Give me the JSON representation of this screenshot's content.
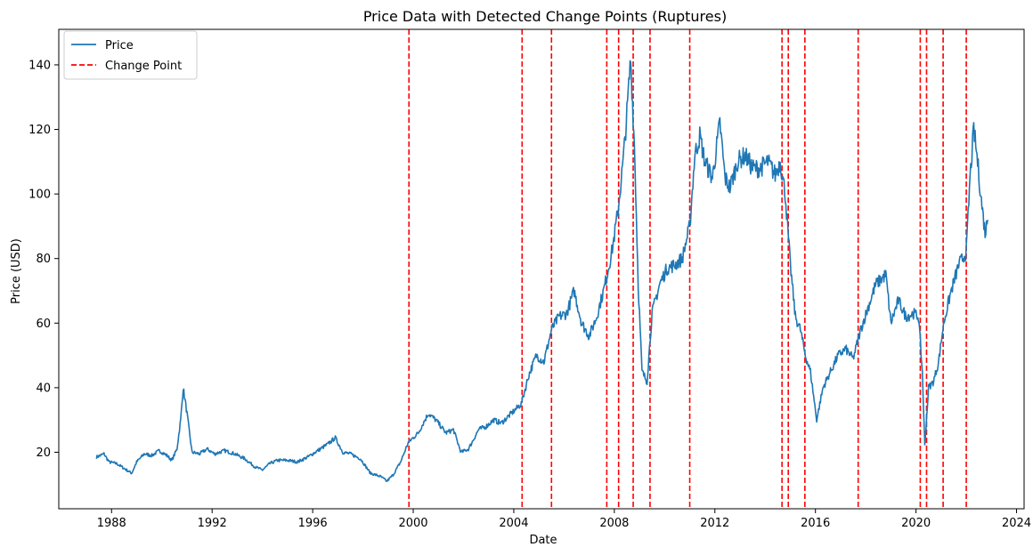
{
  "chart_data": {
    "type": "line",
    "title": "Price Data with Detected Change Points (Ruptures)",
    "xlabel": "Date",
    "ylabel": "Price (USD)",
    "xlim": [
      1985.9,
      2024.3
    ],
    "ylim": [
      2.5,
      151
    ],
    "x_ticks": [
      1988,
      1992,
      1996,
      2000,
      2004,
      2008,
      2012,
      2016,
      2020,
      2024
    ],
    "y_ticks": [
      20,
      40,
      60,
      80,
      100,
      120,
      140
    ],
    "legend": {
      "position": "top-left",
      "entries": [
        "Price",
        "Change Point"
      ]
    },
    "colors": {
      "price": "#1f77b4",
      "change_point": "#ff0000"
    },
    "series": [
      {
        "name": "Price",
        "x": [
          1987.4,
          1987.7,
          1987.9,
          1988.2,
          1988.5,
          1988.8,
          1989.0,
          1989.3,
          1989.6,
          1989.9,
          1990.2,
          1990.4,
          1990.6,
          1990.75,
          1990.85,
          1991.0,
          1991.2,
          1991.5,
          1991.8,
          1992.1,
          1992.5,
          1992.9,
          1993.3,
          1993.7,
          1994.0,
          1994.3,
          1994.6,
          1995.0,
          1995.4,
          1995.8,
          1996.2,
          1996.6,
          1996.9,
          1997.2,
          1997.5,
          1997.9,
          1998.3,
          1998.7,
          1998.95,
          1999.2,
          1999.5,
          1999.8,
          2000.2,
          2000.6,
          2000.9,
          2001.3,
          2001.6,
          2001.9,
          2002.2,
          2002.6,
          2002.9,
          2003.2,
          2003.5,
          2003.9,
          2004.3,
          2004.6,
          2004.9,
          2005.2,
          2005.5,
          2005.8,
          2006.1,
          2006.4,
          2006.7,
          2007.0,
          2007.3,
          2007.6,
          2007.9,
          2008.15,
          2008.35,
          2008.5,
          2008.65,
          2008.8,
          2008.95,
          2009.1,
          2009.3,
          2009.5,
          2009.8,
          2010.1,
          2010.4,
          2010.7,
          2011.0,
          2011.2,
          2011.4,
          2011.6,
          2011.9,
          2012.2,
          2012.4,
          2012.6,
          2012.9,
          2013.2,
          2013.5,
          2013.8,
          2014.1,
          2014.4,
          2014.6,
          2014.8,
          2015.0,
          2015.2,
          2015.4,
          2015.6,
          2015.8,
          2016.05,
          2016.3,
          2016.6,
          2016.9,
          2017.2,
          2017.5,
          2017.8,
          2018.1,
          2018.4,
          2018.8,
          2019.0,
          2019.3,
          2019.6,
          2019.9,
          2020.1,
          2020.25,
          2020.35,
          2020.5,
          2020.7,
          2020.9,
          2021.1,
          2021.4,
          2021.7,
          2022.0,
          2022.15,
          2022.3,
          2022.45,
          2022.6,
          2022.75,
          2022.85
        ],
        "y": [
          18.5,
          19.5,
          17.0,
          16.5,
          15.0,
          13.5,
          17.0,
          19.5,
          19.0,
          20.5,
          19.0,
          17.5,
          21.0,
          30.0,
          40.0,
          32.0,
          20.0,
          19.5,
          21.0,
          19.5,
          20.5,
          19.5,
          18.0,
          15.5,
          14.5,
          16.5,
          17.5,
          17.5,
          17.0,
          18.5,
          20.5,
          22.5,
          24.5,
          20.0,
          19.5,
          18.0,
          13.5,
          12.5,
          11.0,
          13.0,
          17.0,
          23.0,
          26.0,
          32.0,
          30.0,
          26.0,
          27.0,
          20.0,
          21.0,
          27.0,
          28.0,
          30.0,
          29.0,
          32.0,
          35.0,
          44.0,
          50.0,
          48.0,
          58.0,
          62.0,
          63.0,
          70.0,
          60.0,
          56.0,
          62.0,
          71.0,
          82.0,
          95.0,
          110.0,
          125.0,
          142.0,
          115.0,
          72.0,
          45.0,
          42.0,
          63.0,
          72.0,
          77.0,
          78.0,
          80.0,
          90.0,
          112.0,
          118.0,
          110.0,
          105.0,
          122.0,
          105.0,
          102.0,
          110.0,
          112.0,
          108.0,
          108.0,
          110.0,
          106.0,
          110.0,
          100.0,
          78.0,
          62.0,
          58.0,
          50.0,
          45.0,
          30.0,
          40.0,
          45.0,
          50.0,
          52.0,
          49.0,
          58.0,
          65.0,
          72.0,
          75.0,
          60.0,
          67.0,
          62.0,
          63.0,
          62.0,
          45.0,
          22.0,
          40.0,
          42.0,
          48.0,
          60.0,
          70.0,
          78.0,
          82.0,
          105.0,
          120.0,
          110.0,
          98.0,
          88.0,
          92.0
        ]
      }
    ],
    "change_points": [
      1999.83,
      2004.33,
      2005.5,
      2007.7,
      2008.17,
      2008.75,
      2009.42,
      2011.0,
      2014.67,
      2014.92,
      2015.58,
      2017.7,
      2020.17,
      2020.42,
      2021.08,
      2022.0
    ]
  }
}
